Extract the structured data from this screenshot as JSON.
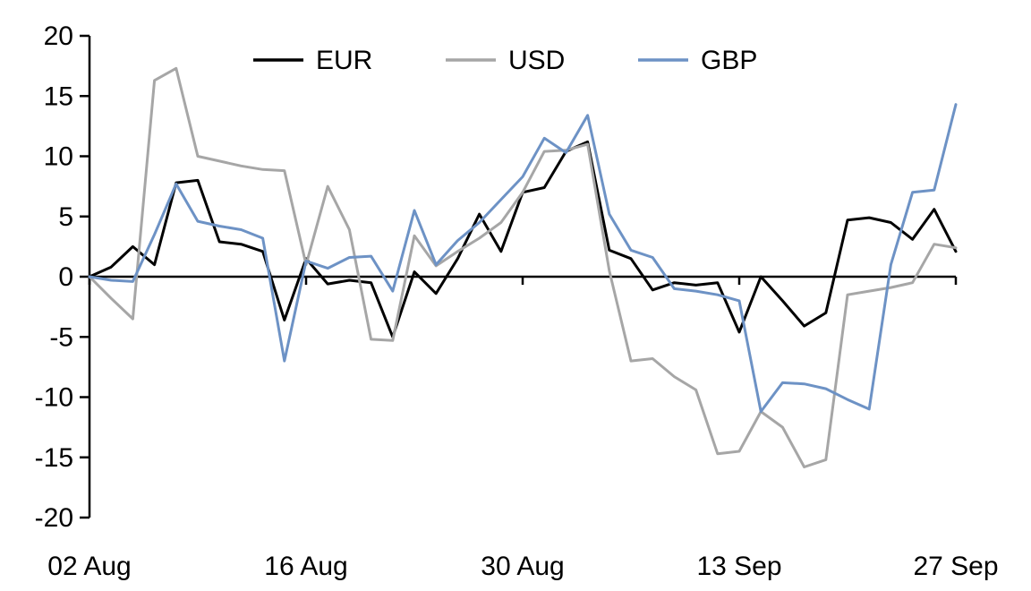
{
  "chart_data": {
    "type": "line",
    "title": "",
    "xlabel": "",
    "ylabel": "",
    "ylim": [
      -20,
      20
    ],
    "y_ticks": [
      20,
      15,
      10,
      5,
      0,
      -5,
      -10,
      -15,
      -20
    ],
    "x_tick_labels": [
      "02 Aug",
      "16 Aug",
      "30 Aug",
      "13 Sep",
      "27 Sep"
    ],
    "x_tick_indices": [
      0,
      10,
      20,
      30,
      40
    ],
    "n_points": 41,
    "grid": false,
    "zero_line": true,
    "legend_position": "top",
    "series": [
      {
        "name": "EUR",
        "color": "#000000",
        "values": [
          0,
          0.8,
          2.5,
          1.0,
          7.8,
          8.0,
          2.9,
          2.7,
          2.1,
          -3.6,
          1.5,
          -0.6,
          -0.3,
          -0.5,
          -5.0,
          0.4,
          -1.4,
          1.5,
          5.2,
          2.1,
          7.0,
          7.4,
          10.4,
          11.2,
          2.2,
          1.5,
          -1.1,
          -0.5,
          -0.7,
          -0.5,
          -4.6,
          0.0,
          -2.0,
          -4.1,
          -3.0,
          4.7,
          4.9,
          4.5,
          3.1,
          5.6,
          2.1
        ]
      },
      {
        "name": "USD",
        "color": "#a6a6a6",
        "values": [
          0,
          -1.8,
          -3.5,
          16.3,
          17.3,
          10.0,
          9.6,
          9.2,
          8.9,
          8.8,
          1.0,
          7.5,
          3.9,
          -5.2,
          -5.3,
          3.4,
          0.9,
          2.1,
          3.2,
          4.5,
          7.0,
          10.4,
          10.5,
          11.0,
          0.5,
          -7.0,
          -6.8,
          -8.3,
          -9.4,
          -14.7,
          -14.5,
          -11.2,
          -12.5,
          -15.8,
          -15.2,
          -1.5,
          -1.2,
          -0.9,
          -0.5,
          2.7,
          2.4
        ]
      },
      {
        "name": "GBP",
        "color": "#6d92c5",
        "values": [
          0,
          -0.3,
          -0.4,
          3.5,
          7.7,
          4.6,
          4.2,
          3.9,
          3.2,
          -7.0,
          1.3,
          0.7,
          1.6,
          1.7,
          -1.2,
          5.5,
          1.0,
          3.0,
          4.5,
          6.4,
          8.3,
          11.5,
          10.3,
          13.4,
          5.2,
          2.2,
          1.6,
          -1.0,
          -1.2,
          -1.5,
          -2.0,
          -11.2,
          -8.8,
          -8.9,
          -9.3,
          -10.2,
          -11.0,
          1.0,
          7.0,
          7.2,
          14.3
        ]
      }
    ]
  }
}
